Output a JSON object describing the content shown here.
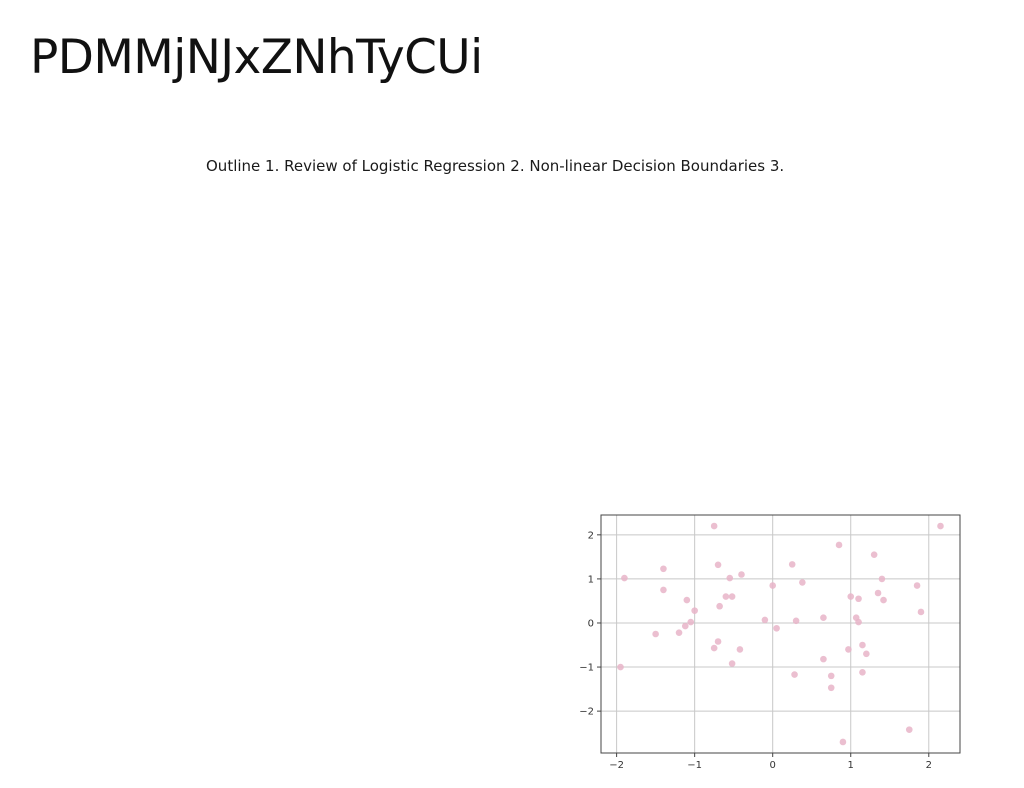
{
  "slide": {
    "title": "PDMMjNJxZNhTyCUi",
    "body": "Outline 1. Review of Logistic Regression 2. Non-linear Decision Boundaries 3."
  },
  "chart_data": {
    "type": "scatter",
    "title": "",
    "xlabel": "",
    "ylabel": "",
    "xlim": [
      -2.2,
      2.4
    ],
    "ylim": [
      -2.95,
      2.45
    ],
    "xticks": [
      -2,
      -1,
      0,
      1,
      2
    ],
    "yticks": [
      2,
      1,
      0,
      -1,
      -2
    ],
    "grid": true,
    "point_color": "#e8b4c8",
    "series": [
      {
        "x": [
          -0.75,
          2.15,
          0.85,
          1.3,
          -0.7,
          0.25,
          -0.4,
          -0.55,
          -1.4,
          -1.9,
          1.4,
          0.0,
          0.38,
          -1.4,
          1.85,
          -0.6,
          -0.52,
          1.35,
          1.0,
          1.1,
          1.42,
          -1.1,
          -0.68,
          1.9,
          -1.0,
          -0.1,
          0.65,
          0.3,
          1.07,
          1.1,
          -1.05,
          -1.12,
          0.05,
          -1.2,
          -1.5,
          -0.7,
          1.15,
          0.97,
          -0.75,
          -0.42,
          1.2,
          0.65,
          -0.52,
          -1.95,
          1.15,
          0.28,
          0.75,
          0.75,
          1.75,
          0.9
        ],
        "y": [
          2.2,
          2.2,
          1.77,
          1.55,
          1.32,
          1.33,
          1.1,
          1.02,
          1.23,
          1.02,
          1.0,
          0.85,
          0.92,
          0.75,
          0.85,
          0.6,
          0.6,
          0.68,
          0.6,
          0.55,
          0.52,
          0.52,
          0.38,
          0.25,
          0.28,
          0.07,
          0.12,
          0.05,
          0.12,
          0.02,
          0.02,
          -0.07,
          -0.12,
          -0.22,
          -0.25,
          -0.42,
          -0.5,
          -0.6,
          -0.57,
          -0.6,
          -0.7,
          -0.82,
          -0.92,
          -1.0,
          -1.12,
          -1.17,
          -1.2,
          -1.47,
          -2.42,
          -2.7
        ]
      }
    ]
  }
}
